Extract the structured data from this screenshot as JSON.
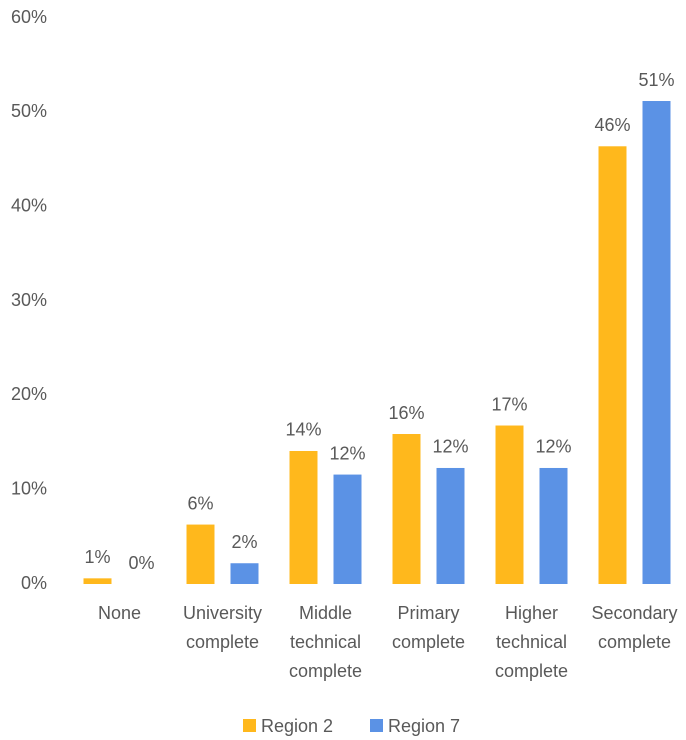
{
  "chart_data": {
    "type": "bar",
    "categories": [
      "None",
      "University complete",
      "Middle technical complete",
      "Primary complete",
      "Higher technical complete",
      "Secondary complete"
    ],
    "series": [
      {
        "name": "Region 2",
        "color": "#FFB81C",
        "values": [
          0.6,
          6.3,
          14.1,
          15.9,
          16.8,
          46.4
        ],
        "value_labels": [
          "1%",
          "6%",
          "14%",
          "16%",
          "17%",
          "46%"
        ]
      },
      {
        "name": "Region 7",
        "color": "#5B92E5",
        "values": [
          0,
          2.2,
          11.6,
          12.3,
          12.3,
          51.2
        ],
        "value_labels": [
          "0%",
          "2%",
          "12%",
          "12%",
          "12%",
          "51%"
        ]
      }
    ],
    "ylim": [
      0,
      60
    ],
    "yticks": [
      {
        "value": 0,
        "label": "0%"
      },
      {
        "value": 10,
        "label": "10%"
      },
      {
        "value": 20,
        "label": "20%"
      },
      {
        "value": 30,
        "label": "30%"
      },
      {
        "value": 40,
        "label": "40%"
      },
      {
        "value": 50,
        "label": "50%"
      },
      {
        "value": 60,
        "label": "60%"
      }
    ],
    "grid": false,
    "legend": "bottom"
  }
}
